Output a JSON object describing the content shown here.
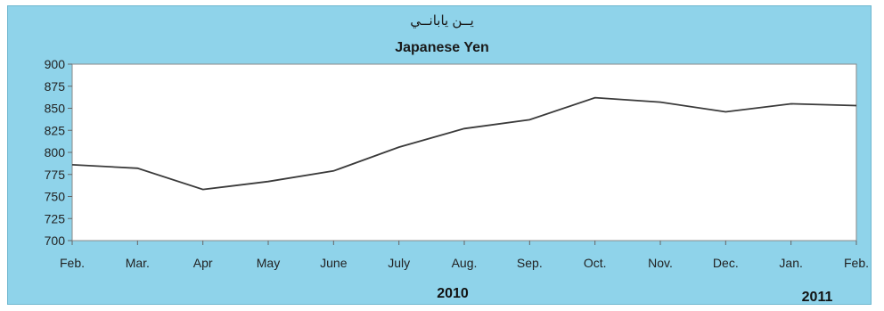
{
  "chart_data": {
    "type": "line",
    "title_ar": "يــن يابانــي",
    "title": "Japanese Yen",
    "categories": [
      "Feb.",
      "Mar.",
      "Apr",
      "May",
      "June",
      "July",
      "Aug.",
      "Sep.",
      "Oct.",
      "Nov.",
      "Dec.",
      "Jan.",
      "Feb."
    ],
    "series": [
      {
        "values": [
          786,
          782,
          758,
          767,
          779,
          806,
          827,
          837,
          862,
          857,
          846,
          855,
          853
        ]
      }
    ],
    "yticks": [
      "900",
      "875",
      "850",
      "825",
      "800",
      "775",
      "750",
      "725",
      "700"
    ],
    "ylim": [
      700,
      900
    ],
    "year_labels": [
      "2010",
      "2011"
    ],
    "grid": false,
    "colors": {
      "background": "#8fd3ea",
      "plot": "#ffffff",
      "line": "#3a3a3a"
    }
  }
}
